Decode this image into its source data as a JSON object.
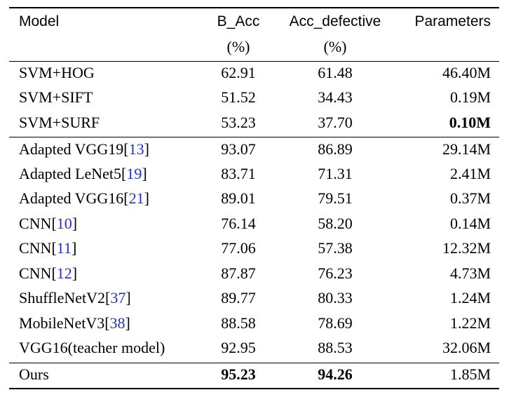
{
  "header": {
    "model": "Model",
    "b_acc": "B_Acc",
    "b_acc_unit": "(%)",
    "acc_defective": "Acc_defective",
    "acc_defective_unit": "(%)",
    "parameters": "Parameters"
  },
  "rows": [
    {
      "model": "SVM+HOG",
      "cite": "",
      "b_acc": "62.91",
      "acc_def": "61.48",
      "params": "46.40M"
    },
    {
      "model": "SVM+SIFT",
      "cite": "",
      "b_acc": "51.52",
      "acc_def": "34.43",
      "params": "0.19M"
    },
    {
      "model": "SVM+SURF",
      "cite": "",
      "b_acc": "53.23",
      "acc_def": "37.70",
      "params": "0.10M"
    },
    {
      "model": "Adapted VGG19",
      "cite": "13",
      "b_acc": "93.07",
      "acc_def": "86.89",
      "params": "29.14M"
    },
    {
      "model": "Adapted LeNet5",
      "cite": "19",
      "b_acc": "83.71",
      "acc_def": "71.31",
      "params": "2.41M"
    },
    {
      "model": "Adapted VGG16",
      "cite": "21",
      "b_acc": "89.01",
      "acc_def": "79.51",
      "params": "0.37M"
    },
    {
      "model": "CNN",
      "cite": "10",
      "b_acc": "76.14",
      "acc_def": "58.20",
      "params": "0.14M"
    },
    {
      "model": "CNN",
      "cite": "11",
      "b_acc": "77.06",
      "acc_def": "57.38",
      "params": "12.32M"
    },
    {
      "model": "CNN",
      "cite": "12",
      "b_acc": "87.87",
      "acc_def": "76.23",
      "params": "4.73M"
    },
    {
      "model": "ShuffleNetV2",
      "cite": "37",
      "b_acc": "89.77",
      "acc_def": "80.33",
      "params": "1.24M"
    },
    {
      "model": "MobileNetV3",
      "cite": "38",
      "b_acc": "88.58",
      "acc_def": "78.69",
      "params": "1.22M"
    },
    {
      "model": "VGG16(teacher model)",
      "cite": "",
      "b_acc": "92.95",
      "acc_def": "88.53",
      "params": "32.06M"
    },
    {
      "model": "Ours",
      "cite": "",
      "b_acc": "95.23",
      "acc_def": "94.26",
      "params": "1.85M"
    }
  ],
  "colors": {
    "citation": "#2030c8",
    "text": "#000000",
    "background": "#ffffff"
  }
}
